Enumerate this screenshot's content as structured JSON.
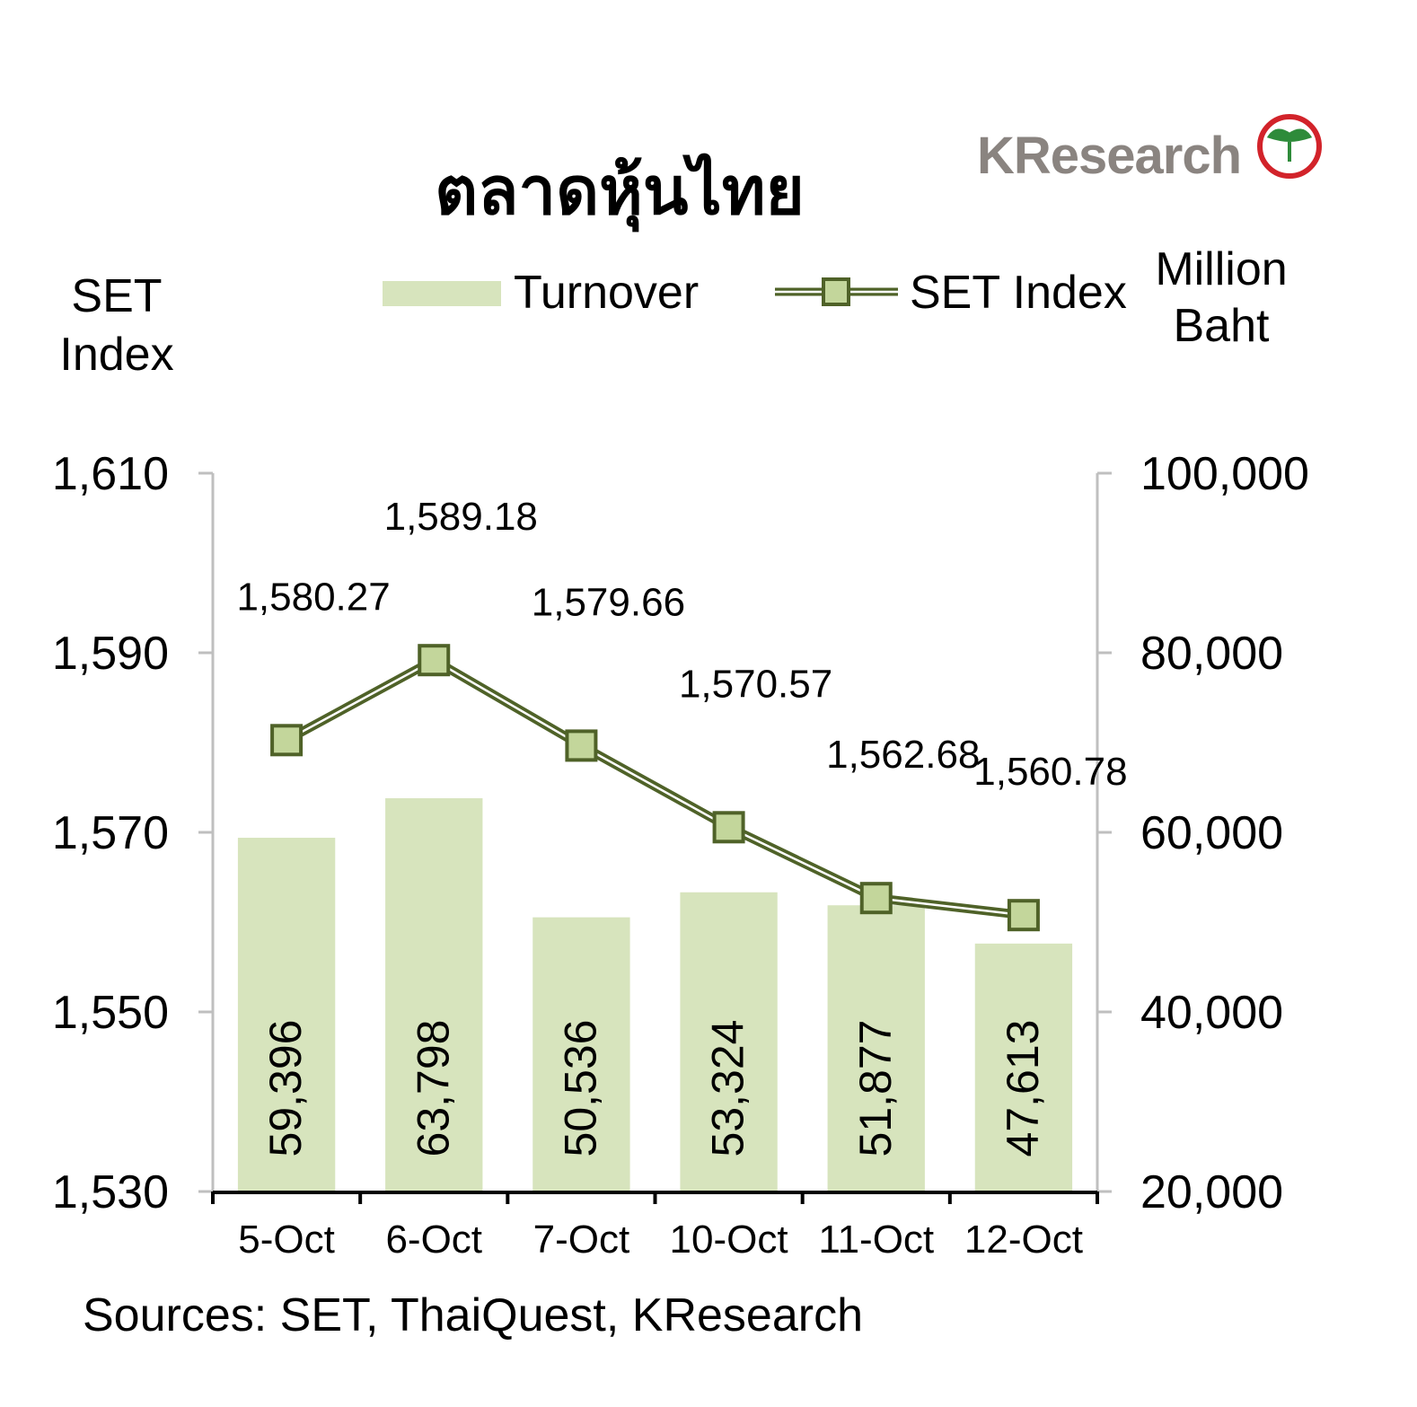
{
  "logo": {
    "text": "KResearch"
  },
  "chart_data": {
    "type": "bar",
    "title": "ตลาดหุ้นไทย",
    "left_axis_title": [
      "SET",
      "Index"
    ],
    "right_axis_title": [
      "Million",
      "Baht"
    ],
    "categories": [
      "5-Oct",
      "6-Oct",
      "7-Oct",
      "10-Oct",
      "11-Oct",
      "12-Oct"
    ],
    "series": [
      {
        "name": "Turnover",
        "type": "bar",
        "axis": "right",
        "values": [
          59396,
          63798,
          50536,
          53324,
          51877,
          47613
        ],
        "labels": [
          "59,396",
          "63,798",
          "50,536",
          "53,324",
          "51,877",
          "47,613"
        ],
        "color": "#d7e4bd"
      },
      {
        "name": "SET Index",
        "type": "line",
        "axis": "left",
        "values": [
          1580.27,
          1589.18,
          1579.66,
          1570.57,
          1562.68,
          1560.78
        ],
        "labels": [
          "1,580.27",
          "1,589.18",
          "1,579.66",
          "1,570.57",
          "1,562.68",
          "1,560.78"
        ],
        "color": "#4f6228",
        "marker_color": "#c3d69b"
      }
    ],
    "left_axis": {
      "min": 1530,
      "max": 1610,
      "ticks": [
        "1,530",
        "1,550",
        "1,570",
        "1,590",
        "1,610"
      ]
    },
    "right_axis": {
      "min": 20000,
      "max": 100000,
      "ticks": [
        "20,000",
        "40,000",
        "60,000",
        "80,000",
        "100,000"
      ]
    },
    "legend_position": "top",
    "grid": false,
    "source": "Sources: SET, ThaiQuest, KResearch"
  }
}
